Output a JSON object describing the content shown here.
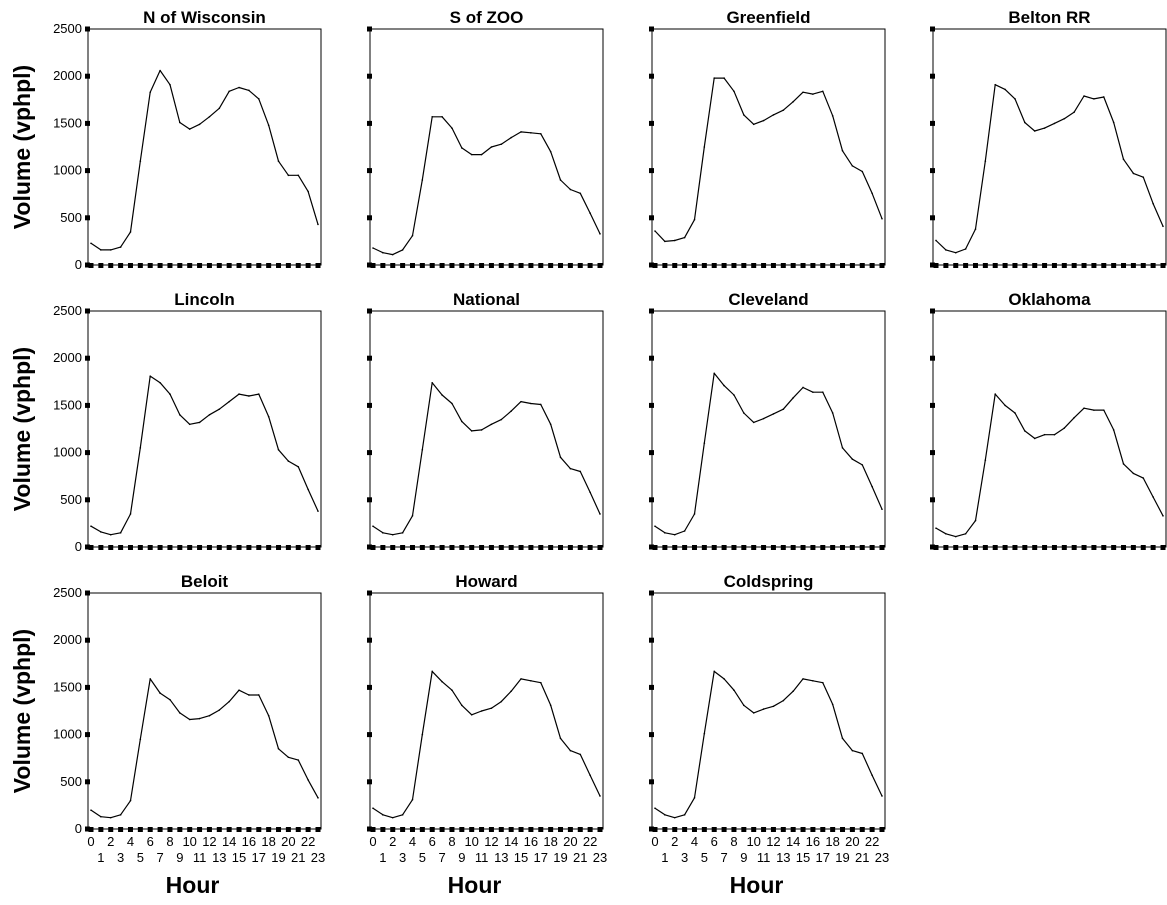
{
  "chart_data": {
    "type": "line",
    "ylabel": "Volume (vphpl)",
    "xlabel": "Hour",
    "ylim": [
      0,
      2500
    ],
    "yticks": [
      0,
      500,
      1000,
      1500,
      2000,
      2500
    ],
    "x": [
      0,
      1,
      2,
      3,
      4,
      5,
      6,
      7,
      8,
      9,
      10,
      11,
      12,
      13,
      14,
      15,
      16,
      17,
      18,
      19,
      20,
      21,
      22,
      23
    ],
    "xtick_labels_even": [
      "0",
      "2",
      "4",
      "6",
      "8",
      "10",
      "12",
      "14",
      "16",
      "18",
      "20",
      "22"
    ],
    "xtick_labels_odd": [
      "1",
      "3",
      "5",
      "7",
      "9",
      "11",
      "13",
      "15",
      "17",
      "19",
      "21",
      "23"
    ],
    "grid": false,
    "line_color": "#000000",
    "panels": [
      {
        "title": "N of Wisconsin",
        "values": [
          230,
          160,
          160,
          190,
          350,
          1100,
          1830,
          2060,
          1910,
          1510,
          1440,
          1490,
          1570,
          1660,
          1840,
          1880,
          1850,
          1760,
          1480,
          1100,
          950,
          950,
          780,
          430
        ]
      },
      {
        "title": "S of ZOO",
        "values": [
          180,
          130,
          110,
          160,
          310,
          900,
          1570,
          1570,
          1450,
          1240,
          1170,
          1170,
          1250,
          1280,
          1350,
          1410,
          1400,
          1390,
          1200,
          900,
          800,
          760,
          550,
          330
        ]
      },
      {
        "title": "Greenfield",
        "values": [
          360,
          250,
          260,
          290,
          480,
          1250,
          1980,
          1980,
          1840,
          1590,
          1490,
          1530,
          1590,
          1640,
          1730,
          1830,
          1810,
          1840,
          1580,
          1210,
          1050,
          990,
          760,
          490
        ]
      },
      {
        "title": "Belton RR",
        "values": [
          260,
          160,
          130,
          170,
          380,
          1100,
          1910,
          1860,
          1760,
          1510,
          1420,
          1450,
          1500,
          1550,
          1620,
          1790,
          1760,
          1780,
          1510,
          1120,
          970,
          930,
          650,
          410
        ]
      },
      {
        "title": "Lincoln",
        "values": [
          220,
          160,
          130,
          150,
          350,
          1050,
          1810,
          1740,
          1620,
          1400,
          1300,
          1320,
          1400,
          1460,
          1540,
          1620,
          1600,
          1620,
          1380,
          1030,
          910,
          850,
          610,
          380
        ]
      },
      {
        "title": "National",
        "values": [
          220,
          150,
          130,
          150,
          330,
          1030,
          1740,
          1610,
          1520,
          1330,
          1230,
          1240,
          1300,
          1350,
          1440,
          1540,
          1520,
          1510,
          1300,
          950,
          830,
          800,
          580,
          350
        ]
      },
      {
        "title": "Cleveland",
        "values": [
          220,
          150,
          130,
          170,
          350,
          1100,
          1840,
          1710,
          1610,
          1420,
          1320,
          1360,
          1410,
          1460,
          1580,
          1690,
          1640,
          1640,
          1420,
          1050,
          930,
          870,
          640,
          400
        ]
      },
      {
        "title": "Oklahoma",
        "values": [
          200,
          140,
          110,
          140,
          280,
          920,
          1620,
          1500,
          1420,
          1230,
          1150,
          1190,
          1190,
          1260,
          1370,
          1470,
          1450,
          1450,
          1240,
          880,
          780,
          730,
          530,
          330
        ]
      },
      {
        "title": "Beloit",
        "values": [
          200,
          130,
          120,
          150,
          300,
          950,
          1590,
          1440,
          1370,
          1230,
          1160,
          1170,
          1200,
          1260,
          1350,
          1470,
          1420,
          1420,
          1200,
          850,
          760,
          730,
          520,
          330
        ]
      },
      {
        "title": "Howard",
        "values": [
          220,
          150,
          120,
          150,
          310,
          1000,
          1670,
          1560,
          1470,
          1310,
          1210,
          1250,
          1280,
          1350,
          1460,
          1590,
          1570,
          1550,
          1310,
          960,
          830,
          790,
          570,
          350
        ]
      },
      {
        "title": "Coldspring",
        "values": [
          220,
          150,
          120,
          150,
          330,
          1010,
          1670,
          1590,
          1470,
          1310,
          1230,
          1270,
          1300,
          1360,
          1460,
          1590,
          1570,
          1550,
          1320,
          960,
          830,
          800,
          570,
          350
        ]
      }
    ]
  }
}
